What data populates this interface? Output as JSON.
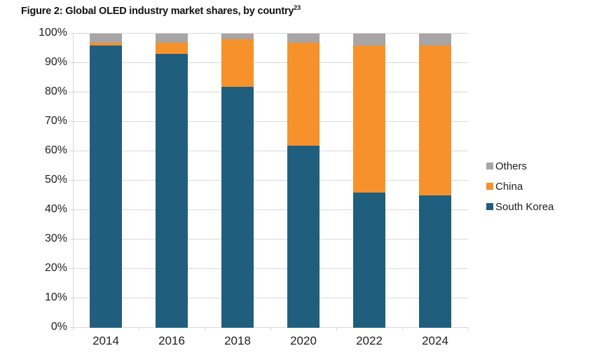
{
  "title": {
    "text": "Figure 2: Global OLED industry market shares, by country",
    "superscript": "23"
  },
  "chart_data": {
    "type": "bar",
    "stacked": true,
    "title": "Figure 2: Global OLED industry market shares, by country",
    "title_footnote": "23",
    "categories": [
      "2014",
      "2016",
      "2018",
      "2020",
      "2022",
      "2024"
    ],
    "series": [
      {
        "name": "South Korea",
        "color": "#205e7d",
        "values": [
          96,
          93,
          82,
          62,
          46,
          45
        ]
      },
      {
        "name": "China",
        "color": "#f6912c",
        "values": [
          1,
          4,
          16,
          35,
          50,
          51
        ]
      },
      {
        "name": "Others",
        "color": "#a7a5a6",
        "values": [
          3,
          3,
          2,
          3,
          4,
          4
        ]
      }
    ],
    "xlabel": "",
    "ylabel": "",
    "ylim": [
      0,
      100
    ],
    "y_tick_labels": [
      "0%",
      "10%",
      "20%",
      "30%",
      "40%",
      "50%",
      "60%",
      "70%",
      "80%",
      "90%",
      "100%"
    ],
    "grid": "horizontal",
    "gridline_color": "#d9d9d9",
    "axis_line_color": "#d9d9d9",
    "text_color": "#1f1f1f",
    "legend_position": "right",
    "legend": [
      {
        "label": "Others",
        "color": "#a7a5a6"
      },
      {
        "label": "China",
        "color": "#f6912c"
      },
      {
        "label": "South Korea",
        "color": "#205e7d"
      }
    ]
  }
}
